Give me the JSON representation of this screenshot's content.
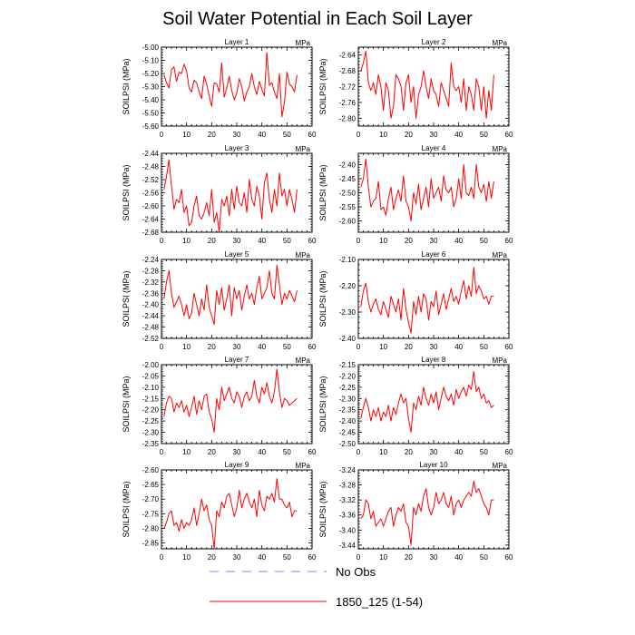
{
  "chart_data": {
    "type": "line",
    "title": "Soil Water Potential in Each Soil Layer",
    "legend": [
      {
        "label": "No Obs",
        "color": "#8080ff",
        "style": "dashed"
      },
      {
        "label": "1850_125 (1-54)",
        "color": "#ff0000",
        "style": "solid"
      }
    ],
    "panels": [
      {
        "title": "Layer 1",
        "units": "MPa",
        "ylabel": "SOILPSI  (MPa)",
        "xlim": [
          0,
          60
        ],
        "xticks": [
          0,
          10,
          20,
          30,
          40,
          50,
          60
        ],
        "ylim": [
          -5.6,
          -5.0
        ],
        "yticks": [
          "-5.00",
          "-5.10",
          "-5.20",
          "-5.30",
          "-5.40",
          "-5.50",
          "-5.60"
        ],
        "values": [
          -5.21,
          -5.27,
          -5.31,
          -5.17,
          -5.15,
          -5.26,
          -5.19,
          -5.2,
          -5.13,
          -5.18,
          -5.31,
          -5.34,
          -5.25,
          -5.27,
          -5.34,
          -5.39,
          -5.22,
          -5.28,
          -5.37,
          -5.45,
          -5.27,
          -5.28,
          -5.34,
          -5.12,
          -5.38,
          -5.31,
          -5.22,
          -5.33,
          -5.4,
          -5.35,
          -5.24,
          -5.3,
          -5.41,
          -5.34,
          -5.3,
          -5.2,
          -5.3,
          -5.36,
          -5.26,
          -5.32,
          -5.37,
          -5.04,
          -5.29,
          -5.27,
          -5.34,
          -5.39,
          -5.2,
          -5.53,
          -5.42,
          -5.19,
          -5.28,
          -5.3,
          -5.34,
          -5.21
        ]
      },
      {
        "title": "Layer 2",
        "units": "MPa",
        "ylabel": "SOILPSI  (MPa)",
        "xlim": [
          0,
          60
        ],
        "xticks": [
          0,
          10,
          20,
          30,
          40,
          50,
          60
        ],
        "ylim": [
          -2.82,
          -2.62
        ],
        "yticks": [
          "-2.64",
          "-2.68",
          "-2.72",
          "-2.76",
          "-2.80"
        ],
        "values": [
          -2.68,
          -2.66,
          -2.63,
          -2.71,
          -2.73,
          -2.71,
          -2.74,
          -2.69,
          -2.72,
          -2.78,
          -2.71,
          -2.73,
          -2.8,
          -2.77,
          -2.69,
          -2.7,
          -2.72,
          -2.78,
          -2.71,
          -2.69,
          -2.76,
          -2.72,
          -2.8,
          -2.74,
          -2.72,
          -2.68,
          -2.72,
          -2.75,
          -2.7,
          -2.73,
          -2.74,
          -2.77,
          -2.71,
          -2.73,
          -2.75,
          -2.77,
          -2.66,
          -2.72,
          -2.73,
          -2.72,
          -2.76,
          -2.7,
          -2.78,
          -2.72,
          -2.74,
          -2.78,
          -2.7,
          -2.72,
          -2.78,
          -2.72,
          -2.8,
          -2.73,
          -2.78,
          -2.69
        ]
      },
      {
        "title": "Layer 3",
        "units": "MPa",
        "ylabel": "SOILPSI  (MPa)",
        "xlim": [
          0,
          60
        ],
        "xticks": [
          0,
          10,
          20,
          30,
          40,
          50,
          60
        ],
        "ylim": [
          -2.68,
          -2.44
        ],
        "yticks": [
          "-2.44",
          "-2.48",
          "-2.52",
          "-2.56",
          "-2.60",
          "-2.64",
          "-2.68"
        ],
        "values": [
          -2.55,
          -2.51,
          -2.46,
          -2.54,
          -2.61,
          -2.58,
          -2.59,
          -2.55,
          -2.62,
          -2.6,
          -2.66,
          -2.65,
          -2.6,
          -2.57,
          -2.63,
          -2.64,
          -2.62,
          -2.59,
          -2.63,
          -2.55,
          -2.65,
          -2.62,
          -2.68,
          -2.58,
          -2.6,
          -2.57,
          -2.63,
          -2.55,
          -2.61,
          -2.54,
          -2.59,
          -2.6,
          -2.56,
          -2.62,
          -2.52,
          -2.58,
          -2.6,
          -2.54,
          -2.57,
          -2.64,
          -2.53,
          -2.5,
          -2.58,
          -2.62,
          -2.55,
          -2.6,
          -2.5,
          -2.57,
          -2.55,
          -2.6,
          -2.55,
          -2.58,
          -2.62,
          -2.55
        ]
      },
      {
        "title": "Layer 4",
        "units": "MPa",
        "ylabel": "SOILPSI  (MPa)",
        "xlim": [
          0,
          60
        ],
        "xticks": [
          0,
          10,
          20,
          30,
          40,
          50,
          60
        ],
        "ylim": [
          -2.64,
          -2.36
        ],
        "yticks": [
          "-2.40",
          "-2.45",
          "-2.50",
          "-2.55",
          "-2.60"
        ],
        "values": [
          -2.48,
          -2.45,
          -2.38,
          -2.48,
          -2.55,
          -2.53,
          -2.52,
          -2.46,
          -2.56,
          -2.55,
          -2.58,
          -2.52,
          -2.48,
          -2.56,
          -2.52,
          -2.49,
          -2.53,
          -2.44,
          -2.53,
          -2.55,
          -2.6,
          -2.5,
          -2.54,
          -2.47,
          -2.56,
          -2.52,
          -2.48,
          -2.55,
          -2.45,
          -2.52,
          -2.5,
          -2.48,
          -2.53,
          -2.44,
          -2.49,
          -2.5,
          -2.48,
          -2.55,
          -2.52,
          -2.45,
          -2.52,
          -2.4,
          -2.5,
          -2.51,
          -2.48,
          -2.52,
          -2.4,
          -2.48,
          -2.5,
          -2.47,
          -2.53,
          -2.46,
          -2.52,
          -2.46
        ]
      },
      {
        "title": "Layer 5",
        "units": "MPa",
        "ylabel": "SOILPSI  (MPa)",
        "xlim": [
          0,
          60
        ],
        "xticks": [
          0,
          10,
          20,
          30,
          40,
          50,
          60
        ],
        "ylim": [
          -2.52,
          -2.24
        ],
        "yticks": [
          "-2.24",
          "-2.28",
          "-2.32",
          "-2.36",
          "-2.40",
          "-2.44",
          "-2.48",
          "-2.52"
        ],
        "values": [
          -2.38,
          -2.32,
          -2.28,
          -2.36,
          -2.41,
          -2.39,
          -2.37,
          -2.4,
          -2.44,
          -2.4,
          -2.45,
          -2.43,
          -2.36,
          -2.4,
          -2.44,
          -2.38,
          -2.42,
          -2.33,
          -2.41,
          -2.44,
          -2.47,
          -2.35,
          -2.4,
          -2.34,
          -2.42,
          -2.38,
          -2.33,
          -2.44,
          -2.34,
          -2.38,
          -2.35,
          -2.42,
          -2.37,
          -2.33,
          -2.38,
          -2.36,
          -2.4,
          -2.34,
          -2.3,
          -2.38,
          -2.36,
          -2.34,
          -2.28,
          -2.36,
          -2.38,
          -2.26,
          -2.33,
          -2.4,
          -2.36,
          -2.38,
          -2.35,
          -2.37,
          -2.39,
          -2.35
        ]
      },
      {
        "title": "Layer 6",
        "units": "MPa",
        "ylabel": "SOILPSI  (MPa)",
        "xlim": [
          0,
          60
        ],
        "xticks": [
          0,
          10,
          20,
          30,
          40,
          50,
          60
        ],
        "ylim": [
          -2.4,
          -2.1
        ],
        "yticks": [
          "-2.10",
          "-2.20",
          "-2.30",
          "-2.40"
        ],
        "values": [
          -2.28,
          -2.22,
          -2.19,
          -2.26,
          -2.3,
          -2.27,
          -2.25,
          -2.29,
          -2.31,
          -2.26,
          -2.29,
          -2.32,
          -2.24,
          -2.27,
          -2.3,
          -2.25,
          -2.33,
          -2.21,
          -2.29,
          -2.34,
          -2.38,
          -2.26,
          -2.31,
          -2.24,
          -2.3,
          -2.23,
          -2.25,
          -2.33,
          -2.26,
          -2.28,
          -2.22,
          -2.31,
          -2.27,
          -2.23,
          -2.29,
          -2.25,
          -2.21,
          -2.26,
          -2.24,
          -2.27,
          -2.22,
          -2.18,
          -2.25,
          -2.2,
          -2.24,
          -2.13,
          -2.23,
          -2.2,
          -2.22,
          -2.25,
          -2.24,
          -2.27,
          -2.24,
          -2.24
        ]
      },
      {
        "title": "Layer 7",
        "units": "MPa",
        "ylabel": "SOILPSI  (MPa)",
        "xlim": [
          0,
          60
        ],
        "xticks": [
          0,
          10,
          20,
          30,
          40,
          50,
          60
        ],
        "ylim": [
          -2.35,
          -2.0
        ],
        "yticks": [
          "-2.00",
          "-2.05",
          "-2.10",
          "-2.15",
          "-2.20",
          "-2.25",
          "-2.30",
          "-2.35"
        ],
        "values": [
          -2.23,
          -2.17,
          -2.14,
          -2.15,
          -2.21,
          -2.17,
          -2.19,
          -2.16,
          -2.21,
          -2.18,
          -2.23,
          -2.19,
          -2.14,
          -2.22,
          -2.16,
          -2.2,
          -2.14,
          -2.13,
          -2.21,
          -2.24,
          -2.3,
          -2.15,
          -2.2,
          -2.1,
          -2.16,
          -2.13,
          -2.1,
          -2.15,
          -2.17,
          -2.12,
          -2.14,
          -2.19,
          -2.14,
          -2.12,
          -2.16,
          -2.14,
          -2.07,
          -2.14,
          -2.17,
          -2.1,
          -2.13,
          -2.08,
          -2.14,
          -2.17,
          -2.12,
          -2.02,
          -2.12,
          -2.19,
          -2.15,
          -2.16,
          -2.18,
          -2.17,
          -2.16,
          -2.15
        ]
      },
      {
        "title": "Layer 8",
        "units": "MPa",
        "ylabel": "SOILPSI  (MPa)",
        "xlim": [
          0,
          60
        ],
        "xticks": [
          0,
          10,
          20,
          30,
          40,
          50,
          60
        ],
        "ylim": [
          -2.5,
          -2.15
        ],
        "yticks": [
          "-2.15",
          "-2.20",
          "-2.25",
          "-2.30",
          "-2.35",
          "-2.40",
          "-2.45",
          "-2.50"
        ],
        "values": [
          -2.39,
          -2.34,
          -2.3,
          -2.34,
          -2.4,
          -2.35,
          -2.38,
          -2.34,
          -2.4,
          -2.36,
          -2.38,
          -2.33,
          -2.4,
          -2.34,
          -2.37,
          -2.32,
          -2.28,
          -2.32,
          -2.3,
          -2.39,
          -2.45,
          -2.32,
          -2.35,
          -2.29,
          -2.33,
          -2.25,
          -2.3,
          -2.33,
          -2.28,
          -2.32,
          -2.27,
          -2.35,
          -2.3,
          -2.25,
          -2.29,
          -2.31,
          -2.28,
          -2.33,
          -2.26,
          -2.3,
          -2.27,
          -2.25,
          -2.29,
          -2.24,
          -2.26,
          -2.18,
          -2.27,
          -2.25,
          -2.3,
          -2.28,
          -2.32,
          -2.31,
          -2.34,
          -2.33
        ]
      },
      {
        "title": "Layer 9",
        "units": "MPa",
        "ylabel": "SOILPSI  (MPa)",
        "xlim": [
          0,
          60
        ],
        "xticks": [
          0,
          10,
          20,
          30,
          40,
          50,
          60
        ],
        "ylim": [
          -2.87,
          -2.6
        ],
        "yticks": [
          "-2.60",
          "-2.65",
          "-2.70",
          "-2.75",
          "-2.80",
          "-2.85"
        ],
        "values": [
          -2.8,
          -2.78,
          -2.75,
          -2.74,
          -2.79,
          -2.78,
          -2.81,
          -2.77,
          -2.8,
          -2.78,
          -2.79,
          -2.77,
          -2.73,
          -2.79,
          -2.75,
          -2.7,
          -2.74,
          -2.72,
          -2.77,
          -2.79,
          -2.87,
          -2.74,
          -2.76,
          -2.71,
          -2.73,
          -2.69,
          -2.68,
          -2.72,
          -2.76,
          -2.73,
          -2.67,
          -2.73,
          -2.7,
          -2.68,
          -2.71,
          -2.73,
          -2.7,
          -2.76,
          -2.67,
          -2.72,
          -2.74,
          -2.69,
          -2.7,
          -2.68,
          -2.71,
          -2.63,
          -2.7,
          -2.7,
          -2.72,
          -2.73,
          -2.71,
          -2.76,
          -2.74,
          -2.74
        ]
      },
      {
        "title": "Layer 10",
        "units": "MPa",
        "ylabel": "SOILPSI  (MPa)",
        "xlim": [
          0,
          60
        ],
        "xticks": [
          0,
          10,
          20,
          30,
          40,
          50,
          60
        ],
        "ylim": [
          -3.45,
          -3.24
        ],
        "yticks": [
          "-3.24",
          "-3.28",
          "-3.32",
          "-3.36",
          "-3.40",
          "-3.44"
        ],
        "values": [
          -3.37,
          -3.36,
          -3.32,
          -3.33,
          -3.37,
          -3.35,
          -3.39,
          -3.38,
          -3.37,
          -3.39,
          -3.37,
          -3.35,
          -3.34,
          -3.39,
          -3.36,
          -3.34,
          -3.35,
          -3.33,
          -3.38,
          -3.39,
          -3.44,
          -3.34,
          -3.36,
          -3.33,
          -3.35,
          -3.31,
          -3.29,
          -3.34,
          -3.36,
          -3.34,
          -3.3,
          -3.33,
          -3.32,
          -3.3,
          -3.33,
          -3.34,
          -3.31,
          -3.36,
          -3.33,
          -3.32,
          -3.34,
          -3.32,
          -3.31,
          -3.3,
          -3.31,
          -3.27,
          -3.3,
          -3.29,
          -3.31,
          -3.33,
          -3.34,
          -3.36,
          -3.32,
          -3.32
        ]
      }
    ]
  }
}
